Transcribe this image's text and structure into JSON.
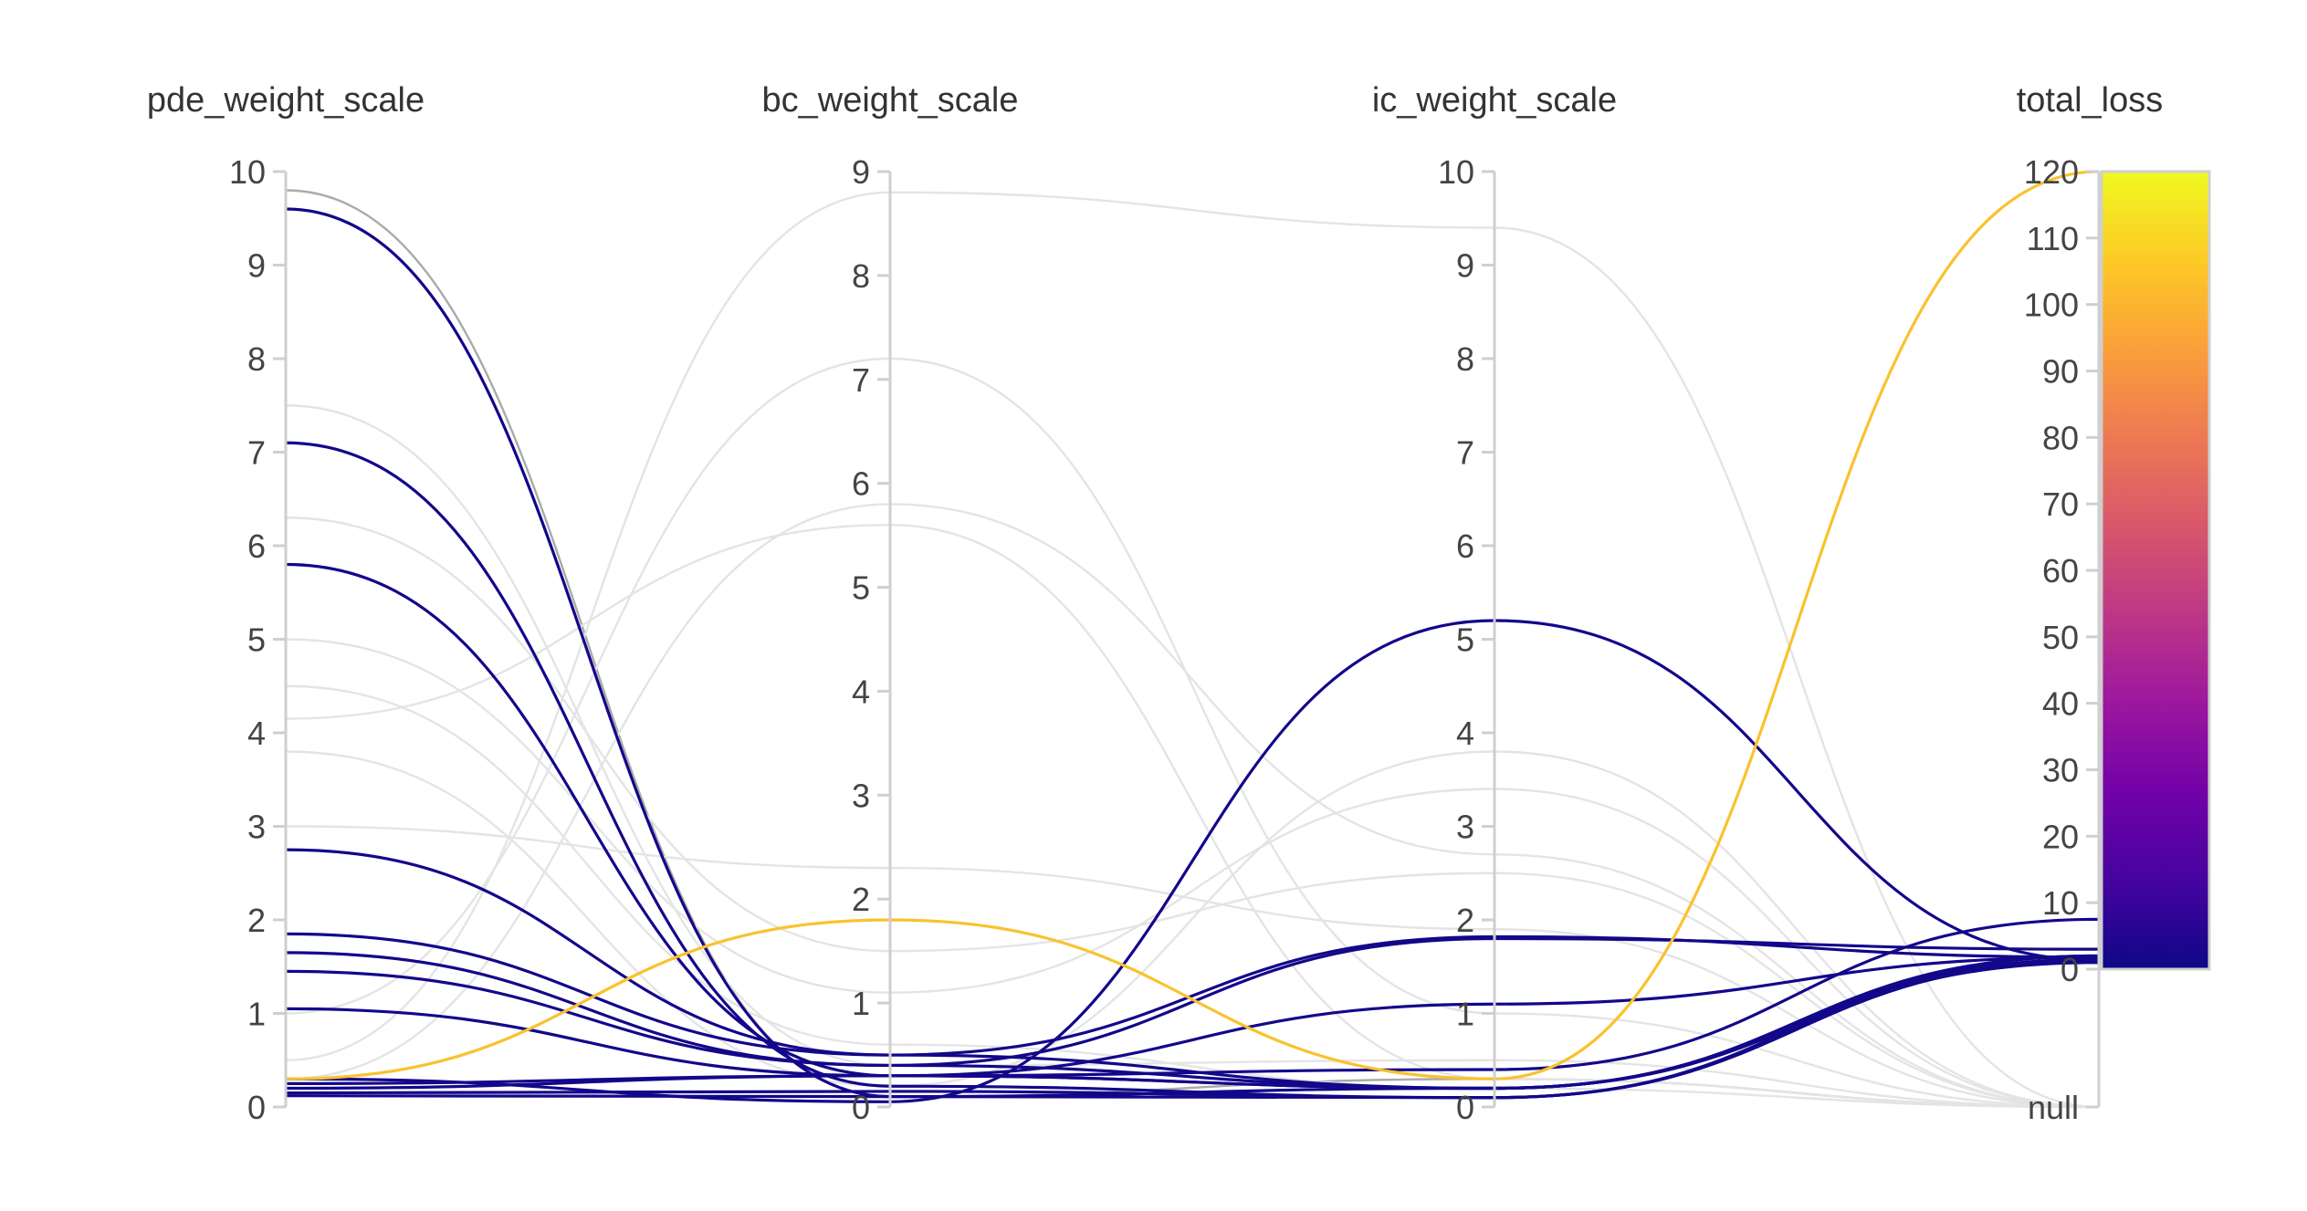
{
  "chart_data": {
    "type": "parallel_coordinates",
    "title": "",
    "axes": [
      {
        "name": "pde_weight_scale",
        "range": [
          0,
          10
        ],
        "ticks": [
          "0",
          "1",
          "2",
          "3",
          "4",
          "5",
          "6",
          "7",
          "8",
          "9",
          "10"
        ]
      },
      {
        "name": "bc_weight_scale",
        "range": [
          0,
          9
        ],
        "ticks": [
          "0",
          "1",
          "2",
          "3",
          "4",
          "5",
          "6",
          "7",
          "8",
          "9"
        ]
      },
      {
        "name": "ic_weight_scale",
        "range": [
          0,
          10
        ],
        "ticks": [
          "0",
          "1",
          "2",
          "3",
          "4",
          "5",
          "6",
          "7",
          "8",
          "9",
          "10"
        ]
      },
      {
        "name": "total_loss",
        "range": [
          0,
          120
        ],
        "ticks": [
          "0",
          "10",
          "20",
          "30",
          "40",
          "50",
          "60",
          "70",
          "80",
          "90",
          "100",
          "110",
          "120"
        ],
        "null_label": "null"
      }
    ],
    "colorscale": {
      "colors": [
        "#0d0887",
        "#46039f",
        "#7201a8",
        "#9c179e",
        "#bd3786",
        "#d8576b",
        "#ed7953",
        "#fb9f3a",
        "#fdca26",
        "#f0f921"
      ],
      "range": [
        0,
        120
      ]
    },
    "series": [
      {
        "values": [
          0.3,
          1.8,
          0.3,
          120
        ],
        "color": "#f9c22e",
        "highlighted": true
      },
      {
        "values": [
          9.6,
          0.1,
          0.2,
          1
        ],
        "color": "#13078a",
        "highlighted": true
      },
      {
        "values": [
          7.1,
          0.2,
          0.1,
          2
        ],
        "color": "#13078a",
        "highlighted": true
      },
      {
        "values": [
          5.8,
          0.3,
          0.2,
          2
        ],
        "color": "#13078a",
        "highlighted": true
      },
      {
        "values": [
          2.75,
          0.5,
          1.82,
          1.8
        ],
        "color": "#13078a",
        "highlighted": true
      },
      {
        "values": [
          1.85,
          0.5,
          0.2,
          1.5
        ],
        "color": "#13078a",
        "highlighted": true
      },
      {
        "values": [
          1.65,
          0.4,
          0.2,
          1.2
        ],
        "color": "#13078a",
        "highlighted": true
      },
      {
        "values": [
          1.45,
          0.4,
          1.8,
          3
        ],
        "color": "#13078a",
        "highlighted": true
      },
      {
        "values": [
          1.05,
          0.3,
          0.2,
          1.3
        ],
        "color": "#13078a",
        "highlighted": true
      },
      {
        "values": [
          0.3,
          0.05,
          5.2,
          1.3
        ],
        "color": "#13078a",
        "highlighted": true
      },
      {
        "values": [
          0.25,
          0.3,
          1.1,
          1.8
        ],
        "color": "#13078a",
        "highlighted": true
      },
      {
        "values": [
          0.2,
          0.3,
          0.4,
          7.5
        ],
        "color": "#13078a",
        "highlighted": true
      },
      {
        "values": [
          0.15,
          0.15,
          0.1,
          1.2
        ],
        "color": "#13078a",
        "highlighted": true
      },
      {
        "values": [
          0.12,
          0.1,
          0.1,
          1.4
        ],
        "color": "#13078a",
        "highlighted": true
      },
      {
        "values": [
          9.8,
          0.1,
          0.3,
          null
        ],
        "color": "#aaaaaa",
        "highlighted": false
      },
      {
        "values": [
          4.15,
          5.6,
          0.3,
          null
        ],
        "color": "#e4e4e4",
        "highlighted": false
      },
      {
        "values": [
          6.3,
          1.5,
          2.5,
          null
        ],
        "color": "#e4e4e4",
        "highlighted": false
      },
      {
        "values": [
          5.0,
          1.1,
          3.4,
          null
        ],
        "color": "#e4e4e4",
        "highlighted": false
      },
      {
        "values": [
          3.8,
          0.2,
          3.8,
          null
        ],
        "color": "#e4e4e4",
        "highlighted": false
      },
      {
        "values": [
          3.0,
          2.3,
          1.9,
          null
        ],
        "color": "#e4e4e4",
        "highlighted": false
      },
      {
        "values": [
          1.0,
          7.2,
          1.0,
          null
        ],
        "color": "#e4e4e4",
        "highlighted": false
      },
      {
        "values": [
          0.5,
          8.8,
          9.4,
          null
        ],
        "color": "#e4e4e4",
        "highlighted": false
      },
      {
        "values": [
          0.3,
          5.8,
          2.7,
          null
        ],
        "color": "#e4e4e4",
        "highlighted": false
      },
      {
        "values": [
          7.5,
          0.4,
          0.5,
          null
        ],
        "color": "#e4e4e4",
        "highlighted": false
      },
      {
        "values": [
          4.5,
          0.6,
          0.2,
          null
        ],
        "color": "#e4e4e4",
        "highlighted": false
      }
    ]
  }
}
